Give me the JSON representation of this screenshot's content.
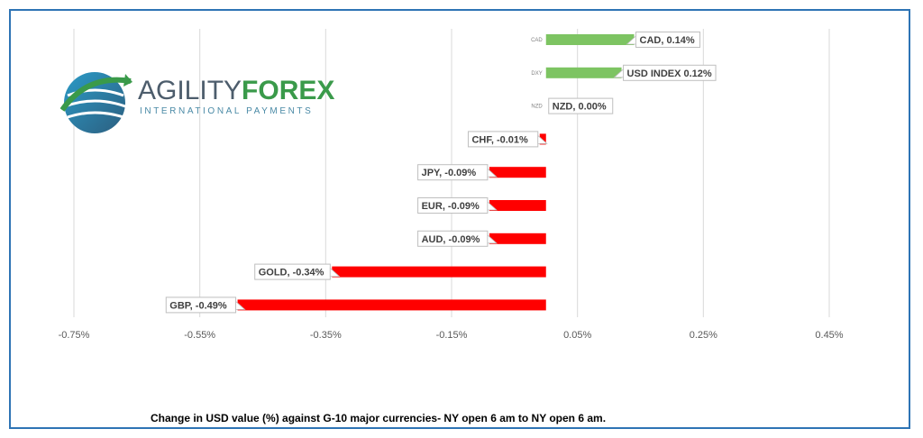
{
  "logo": {
    "name_part1": "AGILITY",
    "name_part2": "FOREX",
    "tagline": "INTERNATIONAL PAYMENTS",
    "primary_color": "#4d5d6c",
    "accent_color": "#3a9a4a"
  },
  "caption": "Change in  USD value (%)  against  G-10 major currencies- NY open 6 am to NY open 6 am.",
  "chart_data": {
    "type": "bar",
    "orientation": "horizontal",
    "categories": [
      "CAD",
      "DXY",
      "NZD",
      "CHF",
      "JPY",
      "EUR",
      "AUD",
      "GOLD",
      "GBP"
    ],
    "values": [
      0.14,
      0.12,
      0.0,
      -0.01,
      -0.09,
      -0.09,
      -0.09,
      -0.34,
      -0.49
    ],
    "data_labels": [
      "CAD, 0.14%",
      "USD INDEX 0.12%",
      "NZD, 0.00%",
      "CHF, -0.01%",
      "JPY, -0.09%",
      "EUR, -0.09%",
      "AUD, -0.09%",
      "GOLD, -0.34%",
      "GBP, -0.49%"
    ],
    "x_ticks": [
      -0.75,
      -0.55,
      -0.35,
      -0.15,
      0.05,
      0.25,
      0.45
    ],
    "x_tick_labels": [
      "-0.75%",
      "-0.55%",
      "-0.35%",
      "-0.15%",
      "0.05%",
      "0.25%",
      "0.45%"
    ],
    "xlim": [
      -0.75,
      0.45
    ],
    "grid": "vertical",
    "colors": {
      "positive": "#7dc462",
      "negative": "#ff0000",
      "grid": "#d9d9d9"
    }
  }
}
